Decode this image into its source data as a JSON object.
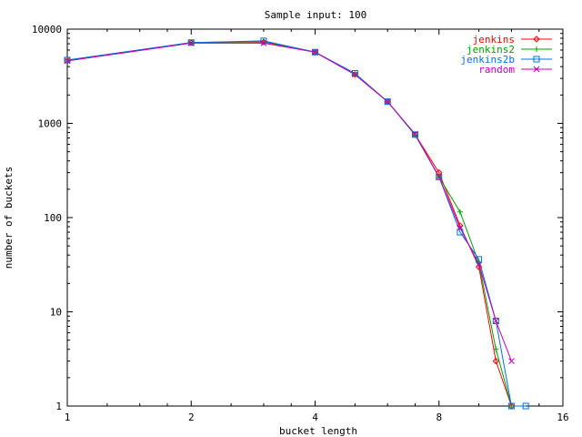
{
  "chart_data": {
    "type": "line",
    "title": "Sample input: 100",
    "xlabel": "bucket length",
    "ylabel": "number of buckets",
    "xscale": "log2",
    "yscale": "log10",
    "xlim": [
      1,
      16
    ],
    "ylim": [
      1,
      10000
    ],
    "x_ticks": [
      1,
      2,
      4,
      8,
      16
    ],
    "y_ticks": [
      1,
      10,
      100,
      1000,
      10000
    ],
    "grid": false,
    "legend_position": "top-right",
    "series": [
      {
        "name": "jenkins",
        "color": "#ff0000",
        "marker": "diamond",
        "x": [
          1,
          2,
          3,
          4,
          5,
          6,
          7,
          8,
          9,
          10,
          11,
          12
        ],
        "y": [
          4600,
          7200,
          7300,
          5700,
          3300,
          1700,
          760,
          300,
          82,
          30,
          3,
          1
        ]
      },
      {
        "name": "jenkins2",
        "color": "#00a000",
        "marker": "plus",
        "x": [
          1,
          2,
          3,
          4,
          5,
          6,
          7,
          8,
          9,
          10,
          11,
          12
        ],
        "y": [
          4700,
          7200,
          7400,
          5700,
          3300,
          1700,
          750,
          270,
          115,
          33,
          4,
          1
        ]
      },
      {
        "name": "jenkins2b",
        "color": "#0070e0",
        "marker": "square",
        "x": [
          1,
          2,
          3,
          4,
          5,
          6,
          7,
          8,
          9,
          10,
          11,
          12,
          13
        ],
        "y": [
          4700,
          7200,
          7500,
          5700,
          3400,
          1700,
          760,
          270,
          70,
          36,
          8,
          1,
          1
        ]
      },
      {
        "name": "random",
        "color": "#c000c0",
        "marker": "x",
        "x": [
          1,
          2,
          3,
          4,
          5,
          6,
          7,
          8,
          9,
          10,
          11,
          12
        ],
        "y": [
          4600,
          7100,
          7100,
          5700,
          3300,
          1700,
          770,
          270,
          78,
          32,
          8,
          3
        ]
      }
    ]
  }
}
